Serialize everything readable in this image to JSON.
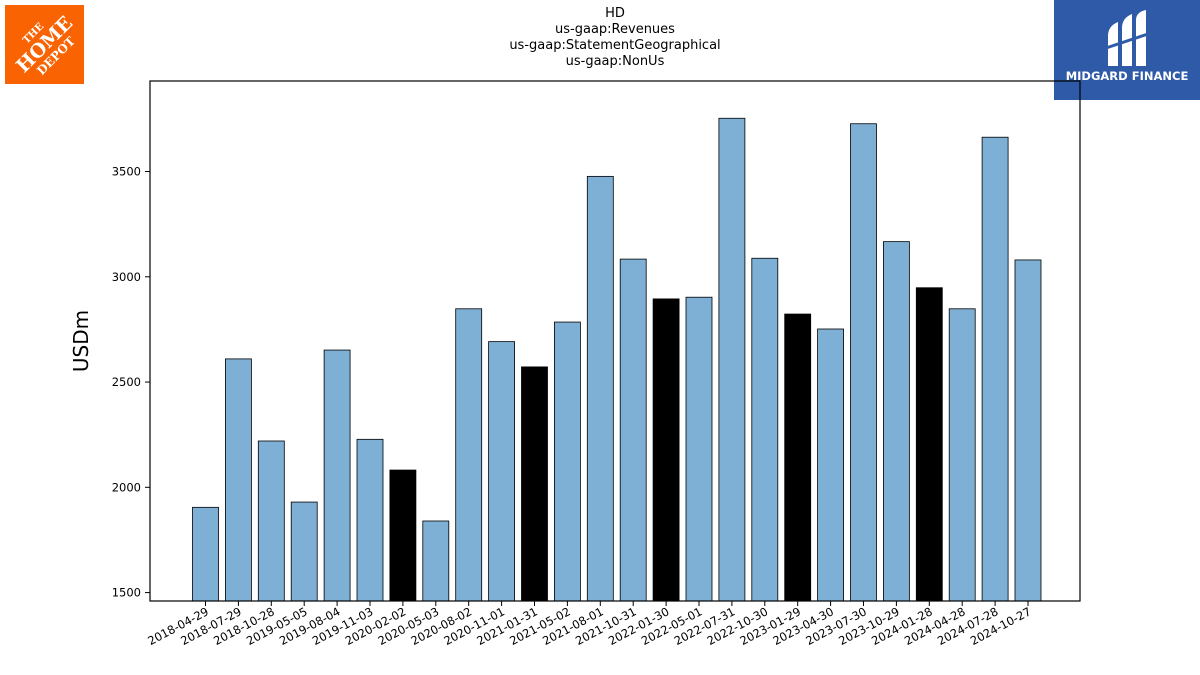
{
  "chart_data": {
    "type": "bar",
    "title_lines": [
      "HD",
      "us-gaap:Revenues",
      "us-gaap:StatementGeographical",
      "us-gaap:NonUs"
    ],
    "ylabel": "USDm",
    "xlabel": "",
    "ylim": [
      1460,
      3930
    ],
    "yticks": [
      1500,
      2000,
      2500,
      3000,
      3500
    ],
    "grid": false,
    "categories": [
      "2018-04-29",
      "2018-07-29",
      "2018-10-28",
      "2019-05-05",
      "2019-08-04",
      "2019-11-03",
      "2020-02-02",
      "2020-05-03",
      "2020-08-02",
      "2020-11-01",
      "2021-01-31",
      "2021-05-02",
      "2021-08-01",
      "2021-10-31",
      "2022-01-30",
      "2022-05-01",
      "2022-07-31",
      "2022-10-30",
      "2023-01-29",
      "2023-04-30",
      "2023-07-30",
      "2023-10-29",
      "2024-01-28",
      "2024-04-28",
      "2024-07-28",
      "2024-10-27"
    ],
    "values": [
      1905,
      2610,
      2220,
      1930,
      2652,
      2228,
      2082,
      1840,
      2848,
      2692,
      2572,
      2785,
      3477,
      3084,
      2895,
      2903,
      3753,
      3088,
      2823,
      2752,
      3727,
      3167,
      2948,
      2848,
      3663,
      3080
    ],
    "highlight": [
      false,
      false,
      false,
      false,
      false,
      false,
      true,
      false,
      false,
      false,
      true,
      false,
      false,
      false,
      true,
      false,
      false,
      false,
      true,
      false,
      false,
      false,
      true,
      false,
      false,
      false
    ],
    "colors": {
      "bar": "#7eb0d5",
      "highlight": "#000000",
      "edge": "#000000"
    }
  },
  "logos": {
    "left": {
      "line1": "THE",
      "line2": "HOME",
      "line3": "DEPOT",
      "bg": "#f96302"
    },
    "right": {
      "name": "MIDGARD FINANCE",
      "bg": "#2f5aa8"
    }
  }
}
